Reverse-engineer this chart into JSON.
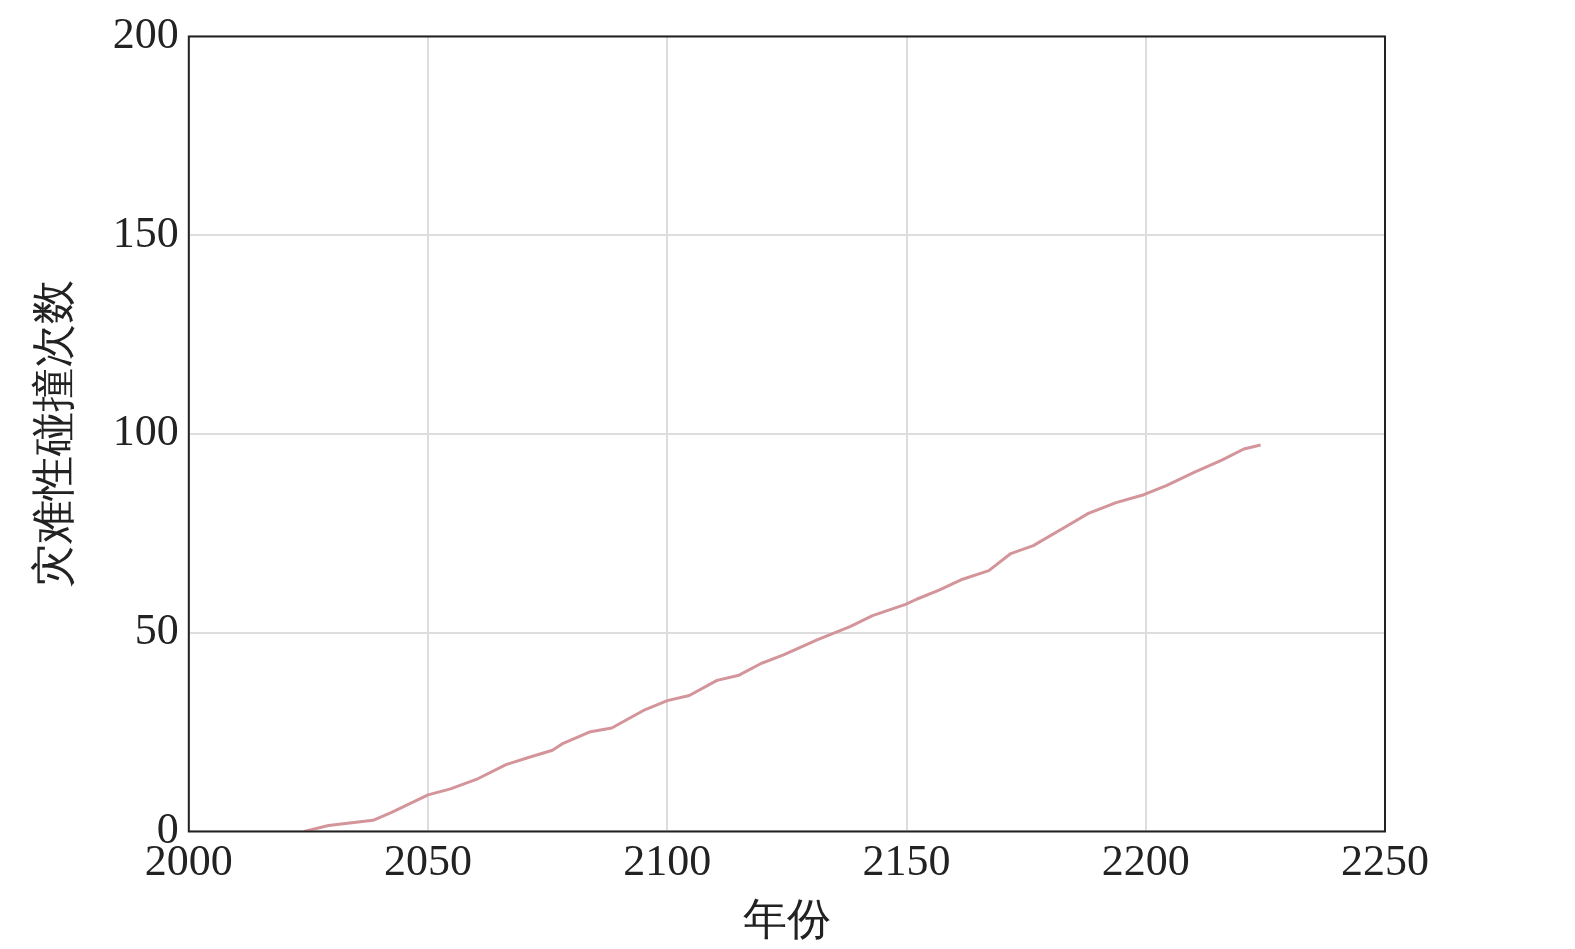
{
  "chart_data": {
    "type": "line",
    "xlabel": "年份",
    "ylabel": "灾难性碰撞次数",
    "xlim": [
      2000,
      2250
    ],
    "xticks": [
      2000,
      2050,
      2100,
      2150,
      2200,
      2250
    ],
    "ylim": [
      0,
      200
    ],
    "yticks": [
      0,
      50,
      100,
      150,
      200
    ],
    "grid": true,
    "legend": false,
    "marker": "none",
    "line_style": "solid",
    "series": [
      {
        "color": "#d4959a",
        "x": [
          2024.1,
          2029.2,
          2038.5,
          2042.4,
          2050,
          2054.7,
          2060.5,
          2066.3,
          2071,
          2076,
          2078,
          2083.7,
          2088.4,
          2095.3,
          2100,
          2104.6,
          2110.4,
          2115,
          2119.7,
          2124.3,
          2131.3,
          2138.2,
          2142.9,
          2149.8,
          2152.1,
          2156.8,
          2161.4,
          2167.2,
          2171.8,
          2176.5,
          2184.6,
          2188,
          2193.8,
          2199.6,
          2204.3,
          2210.1,
          2215.9,
          2220.5,
          2224
        ],
        "values": [
          0,
          1.5,
          2.8,
          4.8,
          9.2,
          10.7,
          13.3,
          16.8,
          18.6,
          20.4,
          22,
          25,
          26,
          30.6,
          32.9,
          34.2,
          38,
          39.3,
          42.3,
          44.4,
          48.2,
          51.5,
          54.3,
          57.1,
          58.4,
          60.7,
          63.3,
          65.6,
          69.9,
          71.9,
          77.6,
          80,
          82.7,
          84.7,
          87,
          90.3,
          93.4,
          96.2,
          97.2
        ]
      }
    ]
  }
}
